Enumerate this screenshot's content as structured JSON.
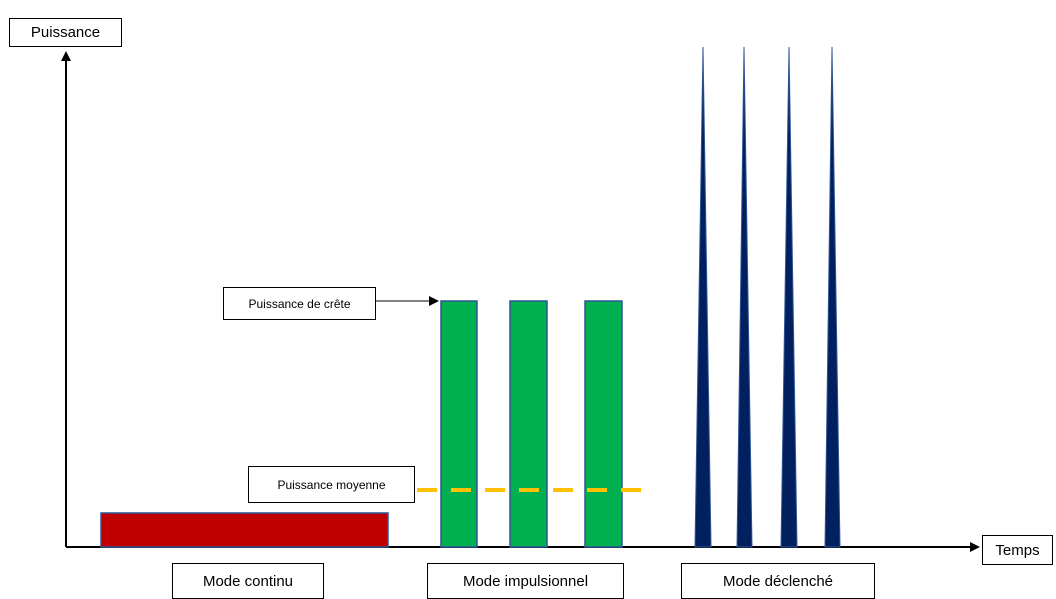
{
  "axes": {
    "y_label": "Puissance",
    "x_label": "Temps"
  },
  "annotations": {
    "peak_power": "Puissance de crête",
    "average_power": "Puissance moyenne"
  },
  "modes": {
    "continuous": "Mode continu",
    "pulsed": "Mode impulsionnel",
    "triggered": "Mode déclenché"
  },
  "colors": {
    "continuous_fill": "#c00000",
    "pulsed_fill": "#00b050",
    "triggered_fill": "#002060",
    "bar_outline": "#2f5597",
    "average_line": "#ffc000",
    "axis": "#000000"
  }
}
